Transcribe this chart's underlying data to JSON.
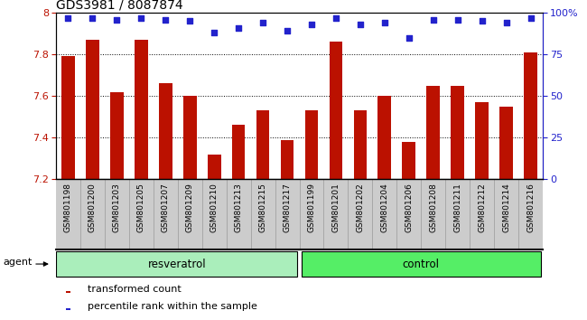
{
  "title": "GDS3981 / 8087874",
  "samples": [
    "GSM801198",
    "GSM801200",
    "GSM801203",
    "GSM801205",
    "GSM801207",
    "GSM801209",
    "GSM801210",
    "GSM801213",
    "GSM801215",
    "GSM801217",
    "GSM801199",
    "GSM801201",
    "GSM801202",
    "GSM801204",
    "GSM801206",
    "GSM801208",
    "GSM801211",
    "GSM801212",
    "GSM801214",
    "GSM801216"
  ],
  "bar_values": [
    7.79,
    7.87,
    7.62,
    7.87,
    7.66,
    7.6,
    7.32,
    7.46,
    7.53,
    7.39,
    7.53,
    7.86,
    7.53,
    7.6,
    7.38,
    7.65,
    7.65,
    7.57,
    7.55,
    7.81
  ],
  "percentile_values": [
    97,
    97,
    96,
    97,
    96,
    95,
    88,
    91,
    94,
    89,
    93,
    97,
    93,
    94,
    85,
    96,
    96,
    95,
    94,
    97
  ],
  "bar_color": "#bb1100",
  "percentile_color": "#2222cc",
  "ylim_left": [
    7.2,
    8.0
  ],
  "ylim_right": [
    0,
    100
  ],
  "yticks_left": [
    7.2,
    7.4,
    7.6,
    7.8,
    8.0
  ],
  "ytick_labels_left": [
    "7.2",
    "7.4",
    "7.6",
    "7.8",
    "8"
  ],
  "yticks_right": [
    0,
    25,
    50,
    75,
    100
  ],
  "ytick_labels_right": [
    "0",
    "25",
    "50",
    "75",
    "100%"
  ],
  "group1_label": "resveratrol",
  "group2_label": "control",
  "group1_count": 10,
  "group2_count": 10,
  "agent_label": "agent",
  "legend_bar_label": "transformed count",
  "legend_dot_label": "percentile rank within the sample",
  "group1_color": "#aaeebb",
  "group2_color": "#55ee66",
  "bar_width": 0.55,
  "background_color": "#ffffff",
  "plot_bg_color": "#ffffff",
  "tick_area_color": "#cccccc",
  "grid_color": "#000000",
  "spine_color": "#000000"
}
